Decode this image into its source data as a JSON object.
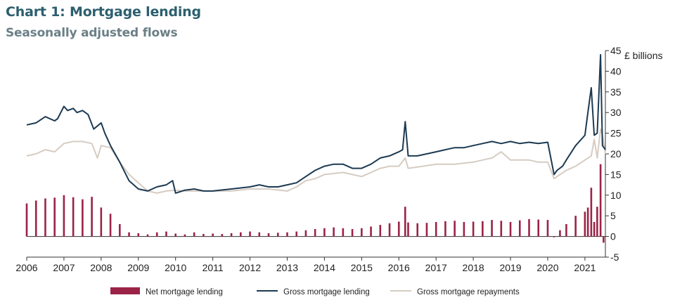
{
  "title": "Chart 1: Mortgage lending",
  "subtitle": "Seasonally adjusted flows",
  "colors": {
    "net": "#9b2348",
    "gross_lending": "#1c3a52",
    "gross_repayments": "#d6ccc2",
    "title": "#2c5f6e",
    "subtitle": "#6b7f87"
  },
  "chart_data": {
    "type": "bar+line",
    "title": "Chart 1: Mortgage lending",
    "subtitle": "Seasonally adjusted flows",
    "ylabel": "£ billions",
    "ylim": [
      -5,
      45
    ],
    "yticks": [
      -5,
      0,
      5,
      10,
      15,
      20,
      25,
      30,
      35,
      40,
      45
    ],
    "ytick_labels": [
      "-5",
      "0",
      "5",
      "10",
      "15",
      "20",
      "25",
      "30",
      "35",
      "40",
      "45"
    ],
    "xlim": [
      2006,
      2021.55
    ],
    "xticks": [
      "2006",
      "2007",
      "2008",
      "2009",
      "2010",
      "2011",
      "2012",
      "2013",
      "2014",
      "2015",
      "2016",
      "2017",
      "2018",
      "2019",
      "2020",
      "2021"
    ],
    "legend": [
      "Net mortgage lending",
      "Gross mortgage lending",
      "Gross mortgage repayments"
    ],
    "legend_position": "bottom",
    "series": [
      {
        "name": "Net mortgage lending",
        "kind": "bar",
        "x": [
          2006.0,
          2006.25,
          2006.5,
          2006.75,
          2007.0,
          2007.25,
          2007.5,
          2007.75,
          2008.0,
          2008.25,
          2008.5,
          2008.75,
          2009.0,
          2009.25,
          2009.5,
          2009.75,
          2010.0,
          2010.25,
          2010.5,
          2010.75,
          2011.0,
          2011.25,
          2011.5,
          2011.75,
          2012.0,
          2012.25,
          2012.5,
          2012.75,
          2013.0,
          2013.25,
          2013.5,
          2013.75,
          2014.0,
          2014.25,
          2014.5,
          2014.75,
          2015.0,
          2015.25,
          2015.5,
          2015.75,
          2016.0,
          2016.17,
          2016.25,
          2016.5,
          2016.75,
          2017.0,
          2017.25,
          2017.5,
          2017.75,
          2018.0,
          2018.25,
          2018.5,
          2018.75,
          2019.0,
          2019.25,
          2019.5,
          2019.75,
          2020.0,
          2020.17,
          2020.33,
          2020.5,
          2020.75,
          2021.0,
          2021.08,
          2021.17,
          2021.25,
          2021.33,
          2021.42,
          2021.5
        ],
        "values": [
          8.0,
          8.7,
          9.2,
          9.4,
          10.0,
          9.5,
          9.0,
          9.6,
          7.0,
          5.5,
          3.0,
          1.0,
          0.8,
          0.5,
          1.0,
          1.2,
          0.7,
          0.5,
          1.0,
          0.6,
          0.7,
          0.6,
          0.8,
          1.0,
          1.2,
          1.0,
          0.8,
          0.9,
          1.0,
          1.2,
          1.5,
          1.8,
          2.0,
          2.2,
          2.0,
          1.8,
          2.0,
          2.4,
          2.8,
          3.2,
          3.6,
          7.2,
          3.4,
          3.2,
          3.3,
          3.5,
          3.7,
          3.8,
          3.5,
          3.6,
          3.7,
          4.0,
          3.8,
          3.5,
          3.9,
          4.2,
          4.1,
          4.0,
          -0.2,
          1.5,
          3.0,
          5.0,
          6.0,
          7.0,
          11.8,
          3.5,
          7.2,
          17.5,
          -1.5
        ]
      },
      {
        "name": "Gross mortgage lending",
        "kind": "line",
        "x": [
          2006.0,
          2006.25,
          2006.5,
          2006.75,
          2006.83,
          2007.0,
          2007.1,
          2007.25,
          2007.35,
          2007.5,
          2007.65,
          2007.8,
          2008.0,
          2008.1,
          2008.25,
          2008.5,
          2008.75,
          2009.0,
          2009.25,
          2009.5,
          2009.75,
          2009.92,
          2010.0,
          2010.25,
          2010.5,
          2010.75,
          2011.0,
          2011.5,
          2012.0,
          2012.25,
          2012.5,
          2012.75,
          2013.0,
          2013.25,
          2013.5,
          2013.75,
          2014.0,
          2014.25,
          2014.5,
          2014.75,
          2015.0,
          2015.25,
          2015.5,
          2015.75,
          2016.0,
          2016.1,
          2016.17,
          2016.25,
          2016.5,
          2016.75,
          2017.0,
          2017.25,
          2017.5,
          2017.75,
          2018.0,
          2018.25,
          2018.5,
          2018.75,
          2019.0,
          2019.25,
          2019.5,
          2019.75,
          2020.0,
          2020.17,
          2020.25,
          2020.4,
          2020.5,
          2020.75,
          2021.0,
          2021.08,
          2021.17,
          2021.25,
          2021.33,
          2021.42,
          2021.47,
          2021.55
        ],
        "values": [
          27.0,
          27.5,
          29.0,
          28.0,
          28.5,
          31.5,
          30.5,
          31.0,
          30.0,
          30.5,
          29.5,
          26.0,
          27.5,
          25.0,
          22.0,
          18.0,
          13.5,
          11.5,
          11.0,
          12.0,
          12.5,
          13.5,
          10.5,
          11.2,
          11.5,
          11.0,
          11.0,
          11.5,
          12.0,
          12.5,
          12.0,
          12.0,
          12.5,
          13.0,
          14.5,
          16.0,
          17.0,
          17.5,
          17.5,
          16.5,
          16.5,
          17.5,
          19.0,
          19.5,
          20.5,
          21.0,
          27.8,
          19.5,
          19.5,
          20.0,
          20.5,
          21.0,
          21.5,
          21.5,
          22.0,
          22.5,
          23.0,
          22.5,
          23.0,
          22.5,
          22.8,
          22.5,
          22.8,
          15.0,
          16.0,
          17.0,
          18.5,
          22.0,
          24.5,
          30.0,
          36.0,
          24.5,
          25.0,
          44.0,
          22.0,
          21.0
        ]
      },
      {
        "name": "Gross mortgage repayments",
        "kind": "line",
        "x": [
          2006.0,
          2006.25,
          2006.5,
          2006.75,
          2007.0,
          2007.25,
          2007.5,
          2007.75,
          2007.9,
          2008.0,
          2008.25,
          2008.5,
          2008.75,
          2009.0,
          2009.25,
          2009.5,
          2009.75,
          2010.0,
          2010.25,
          2010.5,
          2010.75,
          2011.0,
          2011.5,
          2012.0,
          2012.5,
          2013.0,
          2013.25,
          2013.5,
          2013.75,
          2014.0,
          2014.5,
          2015.0,
          2015.25,
          2015.5,
          2015.75,
          2016.0,
          2016.17,
          2016.25,
          2016.5,
          2017.0,
          2017.5,
          2018.0,
          2018.25,
          2018.5,
          2018.75,
          2019.0,
          2019.5,
          2019.75,
          2020.0,
          2020.17,
          2020.25,
          2020.5,
          2020.75,
          2021.0,
          2021.17,
          2021.25,
          2021.33,
          2021.42,
          2021.47,
          2021.55
        ],
        "values": [
          19.5,
          20.0,
          21.0,
          20.5,
          22.5,
          23.0,
          23.0,
          22.5,
          19.0,
          22.0,
          21.5,
          18.0,
          15.0,
          13.0,
          11.0,
          10.5,
          11.0,
          11.2,
          11.0,
          11.0,
          11.0,
          11.0,
          11.0,
          11.5,
          11.5,
          11.0,
          12.0,
          13.5,
          14.0,
          15.0,
          15.5,
          14.5,
          15.5,
          16.5,
          17.0,
          17.0,
          19.0,
          16.5,
          16.8,
          17.5,
          17.5,
          18.0,
          18.5,
          19.0,
          20.5,
          18.5,
          18.5,
          18.0,
          18.0,
          14.0,
          14.5,
          16.0,
          17.0,
          18.5,
          19.5,
          23.5,
          19.0,
          26.0,
          24.5,
          20.0
        ]
      }
    ]
  }
}
